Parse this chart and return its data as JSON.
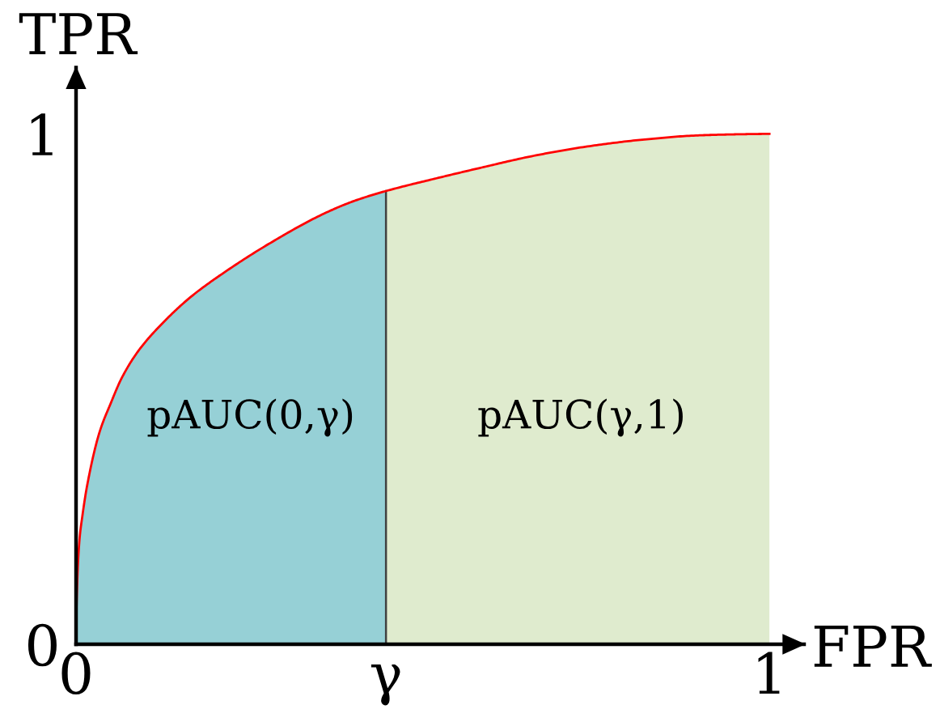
{
  "chart_data": {
    "type": "area",
    "xlabel": "FPR",
    "ylabel": "TPR",
    "xlim": [
      0,
      1.05
    ],
    "ylim": [
      0,
      1.13
    ],
    "xticks": [
      0,
      {
        "value": 0.447,
        "label": "γ"
      },
      1
    ],
    "yticks": [
      0,
      1
    ],
    "series": [
      {
        "name": "pAUC(0,γ)",
        "color": "#96d0d6",
        "x": [
          0,
          0.001,
          0.005,
          0.009,
          0.016,
          0.034,
          0.05,
          0.066,
          0.09,
          0.124,
          0.165,
          0.21,
          0.28,
          0.358,
          0.4,
          0.447
        ],
        "values": [
          0,
          0.09,
          0.205,
          0.25,
          0.311,
          0.416,
          0.472,
          0.522,
          0.575,
          0.628,
          0.68,
          0.725,
          0.786,
          0.844,
          0.868,
          0.888
        ]
      },
      {
        "name": "pAUC(γ,1)",
        "color": "#dfebce",
        "x": [
          0.447,
          0.52,
          0.585,
          0.66,
          0.741,
          0.82,
          0.897,
          0.95,
          1.0
        ],
        "values": [
          0.888,
          0.913,
          0.934,
          0.957,
          0.976,
          0.989,
          0.997,
          0.999,
          1.0
        ]
      },
      {
        "type": "line",
        "color": "#ff0000",
        "x": [
          0,
          0.001,
          0.005,
          0.009,
          0.016,
          0.034,
          0.05,
          0.066,
          0.09,
          0.124,
          0.165,
          0.21,
          0.28,
          0.358,
          0.4,
          0.447,
          0.52,
          0.585,
          0.66,
          0.741,
          0.82,
          0.897,
          0.95,
          1.0
        ],
        "values": [
          0,
          0.09,
          0.205,
          0.25,
          0.311,
          0.416,
          0.472,
          0.522,
          0.575,
          0.628,
          0.68,
          0.725,
          0.786,
          0.844,
          0.868,
          0.888,
          0.913,
          0.934,
          0.957,
          0.976,
          0.989,
          0.997,
          0.999,
          1.0
        ]
      }
    ],
    "ref_lines": [
      {
        "axis": "x",
        "value": 0.447,
        "color": "#404040"
      }
    ]
  }
}
